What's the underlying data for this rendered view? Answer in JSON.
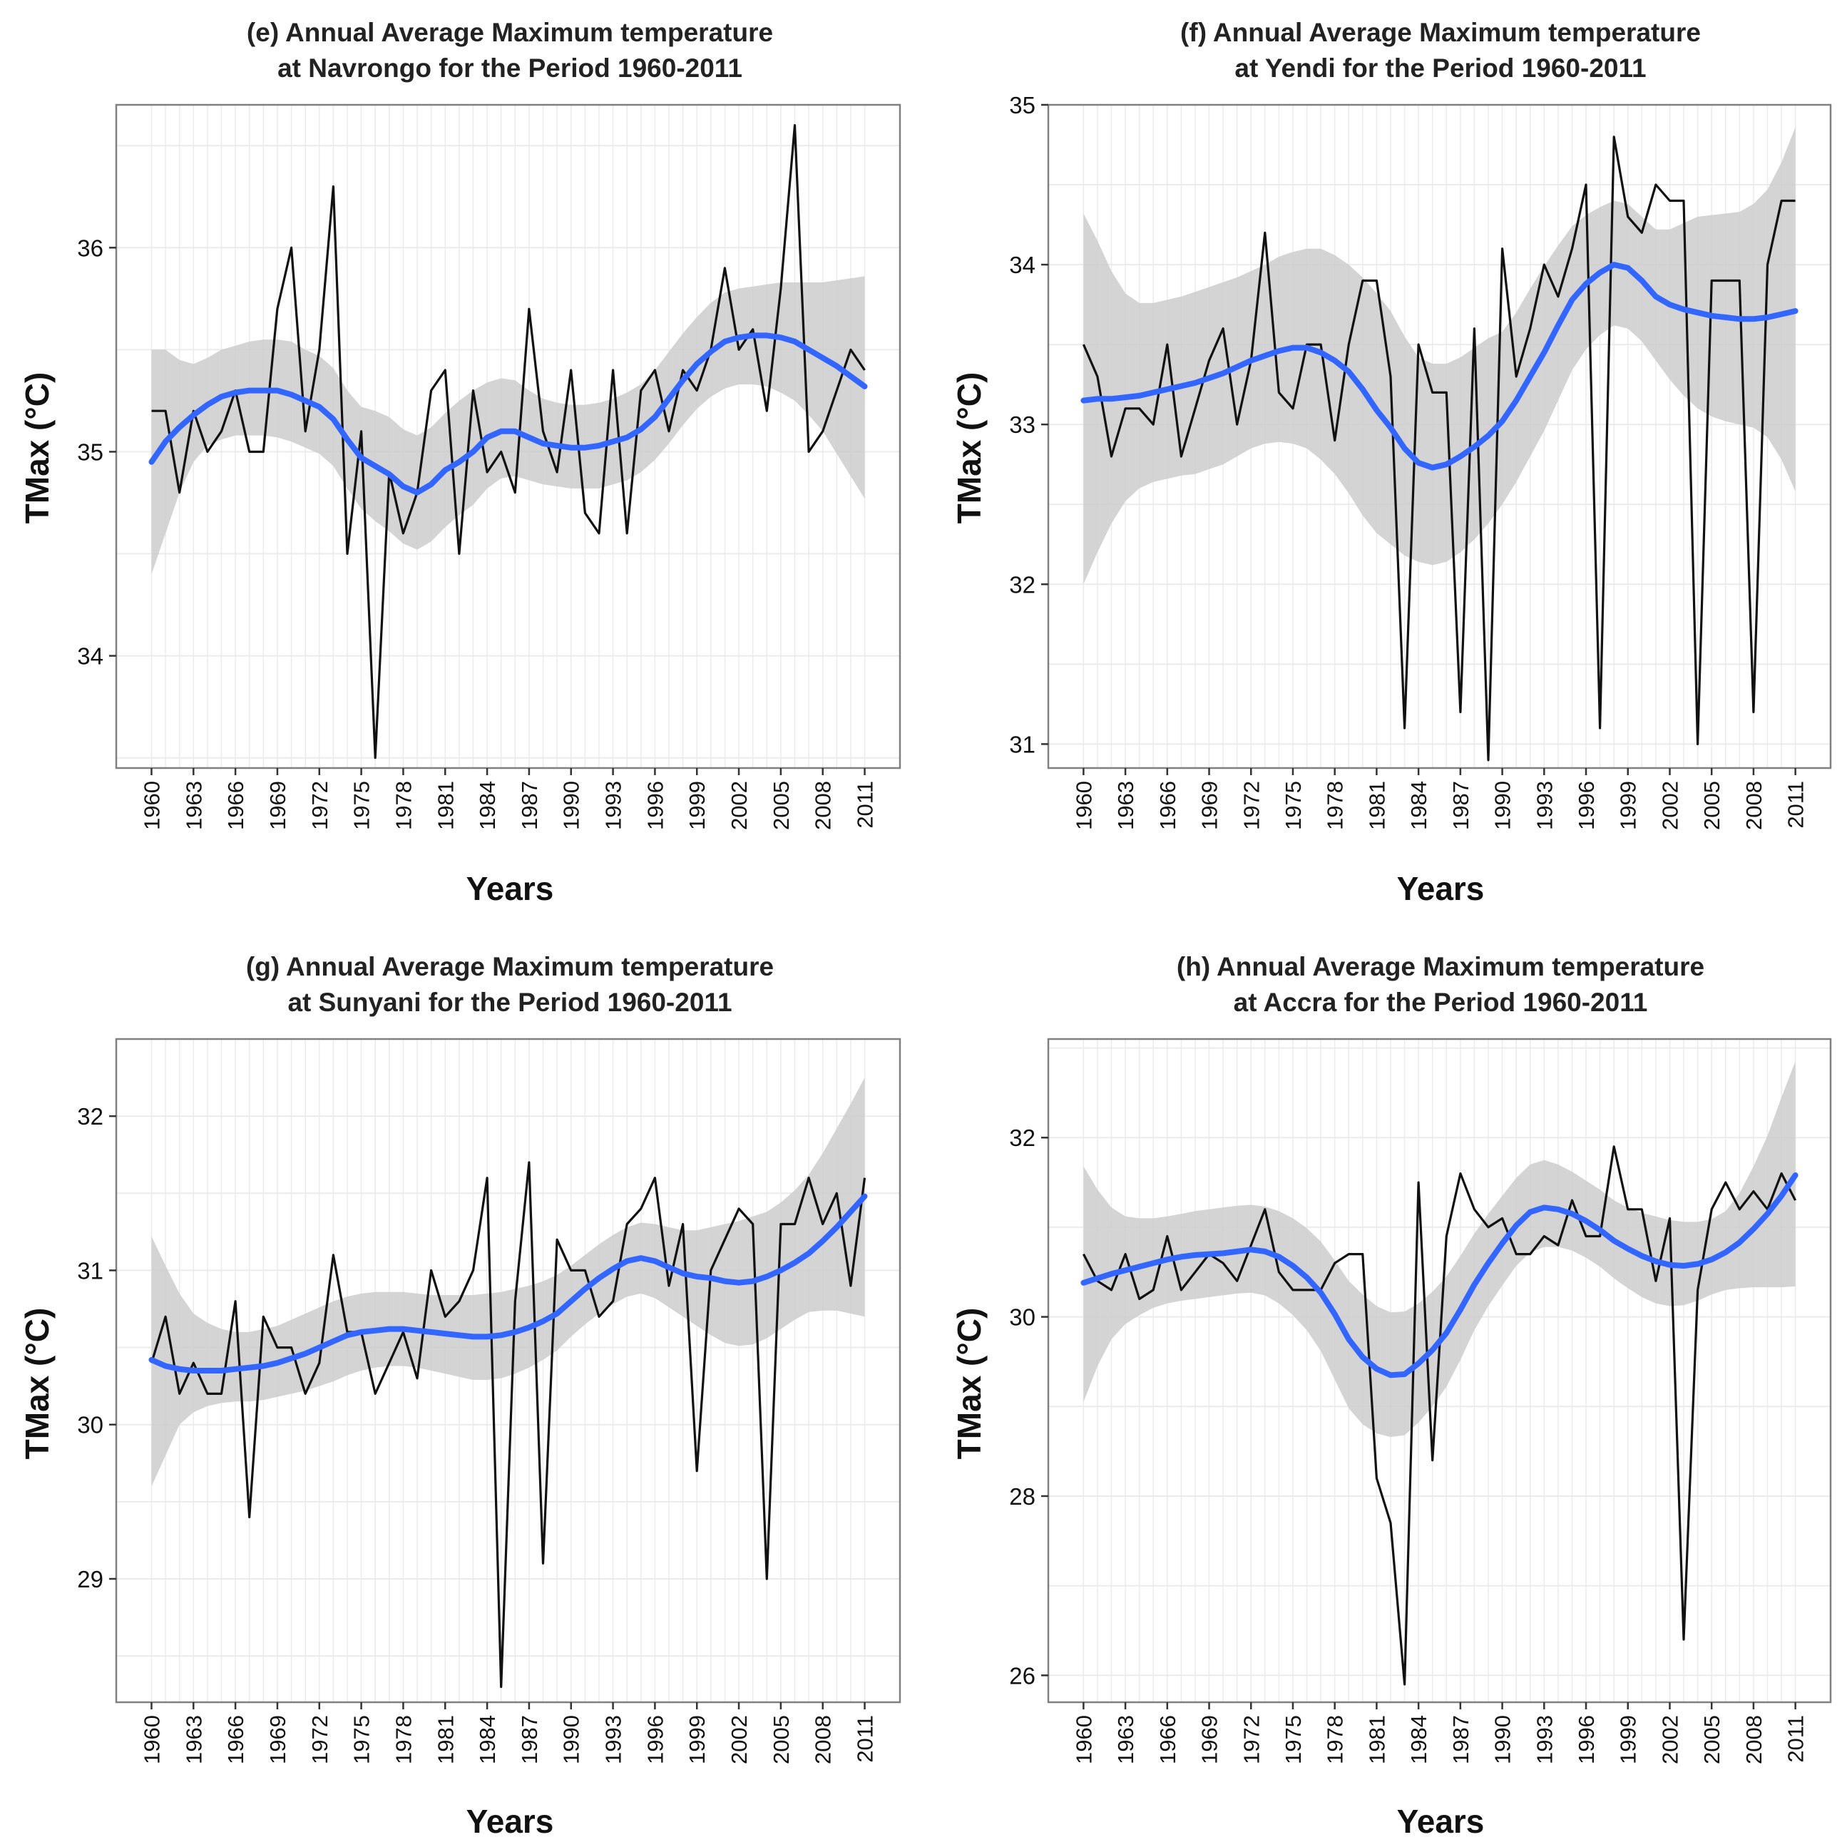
{
  "colors": {
    "data_line": "#111111",
    "smooth_line": "#3366FF",
    "ribbon": "#CCCCCC",
    "grid": "#EBEBEB",
    "panel_border": "#808080"
  },
  "x_tick_labels": [
    "1960",
    "1963",
    "1966",
    "1969",
    "1972",
    "1975",
    "1978",
    "1981",
    "1984",
    "1987",
    "1990",
    "1993",
    "1996",
    "1999",
    "2002",
    "2005",
    "2008",
    "2011"
  ],
  "chart_data": [
    {
      "type": "line",
      "panel": "e",
      "title_line1": "(e) Annual Average Maximum temperature",
      "title_line2": "at Navrongo for the Period 1960-2011",
      "xlabel": "Years",
      "ylabel": "TMax (°C)",
      "ylim": [
        33.45,
        36.7
      ],
      "yticks": [
        34,
        35,
        36
      ],
      "x_start": 1960,
      "values": [
        35.2,
        35.2,
        34.8,
        35.2,
        35.0,
        35.1,
        35.3,
        35.0,
        35.0,
        35.7,
        36.0,
        35.1,
        35.5,
        36.3,
        34.5,
        35.1,
        33.5,
        34.9,
        34.6,
        34.8,
        35.3,
        35.4,
        34.5,
        35.3,
        34.9,
        35.0,
        34.8,
        35.7,
        35.1,
        34.9,
        35.4,
        34.7,
        34.6,
        35.4,
        34.6,
        35.3,
        35.4,
        35.1,
        35.4,
        35.3,
        35.5,
        35.9,
        35.5,
        35.6,
        35.2,
        35.8,
        36.6,
        35.0,
        35.1,
        35.3,
        35.5,
        35.4
      ],
      "smooth": [
        34.95,
        35.05,
        35.12,
        35.18,
        35.23,
        35.27,
        35.29,
        35.3,
        35.3,
        35.3,
        35.28,
        35.25,
        35.22,
        35.16,
        35.06,
        34.97,
        34.93,
        34.89,
        34.83,
        34.8,
        34.84,
        34.91,
        34.95,
        35.0,
        35.07,
        35.1,
        35.1,
        35.07,
        35.04,
        35.03,
        35.02,
        35.02,
        35.03,
        35.05,
        35.07,
        35.11,
        35.17,
        35.26,
        35.35,
        35.43,
        35.49,
        35.54,
        35.56,
        35.57,
        35.57,
        35.56,
        35.54,
        35.5,
        35.46,
        35.42,
        35.37,
        35.32
      ],
      "band_low": [
        34.4,
        34.6,
        34.8,
        34.95,
        35.03,
        35.06,
        35.08,
        35.08,
        35.08,
        35.07,
        35.05,
        35.02,
        34.99,
        34.93,
        34.82,
        34.72,
        34.66,
        34.61,
        34.55,
        34.52,
        34.56,
        34.63,
        34.69,
        34.74,
        34.82,
        34.87,
        34.88,
        34.86,
        34.84,
        34.83,
        34.82,
        34.82,
        34.82,
        34.84,
        34.86,
        34.9,
        34.96,
        35.04,
        35.13,
        35.21,
        35.27,
        35.31,
        35.33,
        35.33,
        35.32,
        35.29,
        35.25,
        35.18,
        35.1,
        34.99,
        34.88,
        34.77
      ],
      "band_high": [
        35.5,
        35.5,
        35.45,
        35.43,
        35.46,
        35.5,
        35.52,
        35.54,
        35.55,
        35.55,
        35.54,
        35.5,
        35.47,
        35.41,
        35.3,
        35.22,
        35.2,
        35.17,
        35.11,
        35.08,
        35.12,
        35.19,
        35.25,
        35.3,
        35.34,
        35.36,
        35.35,
        35.3,
        35.26,
        35.24,
        35.23,
        35.23,
        35.24,
        35.26,
        35.29,
        35.33,
        35.4,
        35.49,
        35.58,
        35.66,
        35.73,
        35.78,
        35.8,
        35.81,
        35.82,
        35.83,
        35.83,
        35.83,
        35.83,
        35.84,
        35.85,
        35.86
      ]
    },
    {
      "type": "line",
      "panel": "f",
      "title_line1": "(f) Annual Average Maximum temperature",
      "title_line2": "at Yendi for the Period 1960-2011",
      "xlabel": "Years",
      "ylabel": "TMax (°C)",
      "ylim": [
        30.85,
        35.0
      ],
      "yticks": [
        31,
        32,
        33,
        34,
        35
      ],
      "x_start": 1960,
      "values": [
        33.5,
        33.3,
        32.8,
        33.1,
        33.1,
        33.0,
        33.5,
        32.8,
        33.1,
        33.4,
        33.6,
        33.0,
        33.4,
        34.2,
        33.2,
        33.1,
        33.5,
        33.5,
        32.9,
        33.5,
        33.9,
        33.9,
        33.3,
        31.1,
        33.5,
        33.2,
        33.2,
        31.2,
        33.6,
        30.9,
        34.1,
        33.3,
        33.6,
        34.0,
        33.8,
        34.1,
        34.5,
        31.1,
        34.8,
        34.3,
        34.2,
        34.5,
        34.4,
        34.4,
        31.0,
        33.9,
        33.9,
        33.9,
        31.2,
        34.0,
        34.4,
        34.4
      ],
      "smooth": [
        33.15,
        33.16,
        33.16,
        33.17,
        33.18,
        33.2,
        33.22,
        33.24,
        33.26,
        33.29,
        33.32,
        33.36,
        33.4,
        33.43,
        33.46,
        33.48,
        33.48,
        33.45,
        33.4,
        33.33,
        33.22,
        33.09,
        32.98,
        32.85,
        32.76,
        32.73,
        32.75,
        32.8,
        32.86,
        32.93,
        33.02,
        33.15,
        33.3,
        33.45,
        33.62,
        33.78,
        33.88,
        33.95,
        34.0,
        33.98,
        33.9,
        33.8,
        33.75,
        33.72,
        33.7,
        33.68,
        33.67,
        33.66,
        33.66,
        33.67,
        33.69,
        33.71
      ],
      "band_low": [
        32.0,
        32.2,
        32.38,
        32.52,
        32.6,
        32.64,
        32.66,
        32.68,
        32.69,
        32.72,
        32.75,
        32.8,
        32.85,
        32.88,
        32.89,
        32.88,
        32.85,
        32.78,
        32.69,
        32.57,
        32.43,
        32.32,
        32.25,
        32.18,
        32.14,
        32.12,
        32.14,
        32.2,
        32.28,
        32.38,
        32.5,
        32.64,
        32.8,
        32.96,
        33.15,
        33.34,
        33.47,
        33.56,
        33.62,
        33.6,
        33.52,
        33.4,
        33.28,
        33.18,
        33.1,
        33.05,
        33.02,
        33.0,
        32.98,
        32.92,
        32.78,
        32.58
      ],
      "band_high": [
        34.32,
        34.15,
        33.96,
        33.82,
        33.76,
        33.76,
        33.78,
        33.8,
        33.83,
        33.86,
        33.89,
        33.92,
        33.96,
        34.0,
        34.05,
        34.08,
        34.1,
        34.1,
        34.06,
        34.0,
        33.92,
        33.82,
        33.71,
        33.55,
        33.42,
        33.38,
        33.38,
        33.42,
        33.48,
        33.54,
        33.58,
        33.7,
        33.85,
        33.99,
        34.12,
        34.24,
        34.31,
        34.36,
        34.4,
        34.38,
        34.3,
        34.22,
        34.22,
        34.26,
        34.3,
        34.31,
        34.32,
        34.33,
        34.38,
        34.47,
        34.64,
        34.86
      ]
    },
    {
      "type": "line",
      "panel": "g",
      "title_line1": "(g) Annual Average Maximum temperature",
      "title_line2": "at Sunyani for the Period 1960-2011",
      "xlabel": "Years",
      "ylabel": "TMax (°C)",
      "ylim": [
        28.2,
        32.5
      ],
      "yticks": [
        29,
        30,
        31,
        32
      ],
      "x_start": 1960,
      "values": [
        30.4,
        30.7,
        30.2,
        30.4,
        30.2,
        30.2,
        30.8,
        29.4,
        30.7,
        30.5,
        30.5,
        30.2,
        30.4,
        31.1,
        30.6,
        30.6,
        30.2,
        30.4,
        30.6,
        30.3,
        31.0,
        30.7,
        30.8,
        31.0,
        31.6,
        28.3,
        30.8,
        31.7,
        29.1,
        31.2,
        31.0,
        31.0,
        30.7,
        30.8,
        31.3,
        31.4,
        31.6,
        30.9,
        31.3,
        29.7,
        31.0,
        31.2,
        31.4,
        31.3,
        29.0,
        31.3,
        31.3,
        31.6,
        31.3,
        31.5,
        30.9,
        31.6
      ],
      "smooth": [
        30.42,
        30.38,
        30.36,
        30.35,
        30.35,
        30.35,
        30.36,
        30.37,
        30.38,
        30.4,
        30.43,
        30.46,
        30.5,
        30.54,
        30.58,
        30.6,
        30.61,
        30.62,
        30.62,
        30.61,
        30.6,
        30.59,
        30.58,
        30.57,
        30.57,
        30.58,
        30.6,
        30.63,
        30.67,
        30.72,
        30.8,
        30.88,
        30.95,
        31.01,
        31.06,
        31.08,
        31.06,
        31.02,
        30.98,
        30.96,
        30.95,
        30.93,
        30.92,
        30.93,
        30.96,
        31.0,
        31.05,
        31.11,
        31.19,
        31.28,
        31.38,
        31.48
      ],
      "band_low": [
        29.6,
        29.8,
        30.0,
        30.08,
        30.12,
        30.14,
        30.15,
        30.15,
        30.16,
        30.18,
        30.2,
        30.22,
        30.25,
        30.28,
        30.32,
        30.35,
        30.37,
        30.38,
        30.38,
        30.37,
        30.35,
        30.33,
        30.31,
        30.29,
        30.29,
        30.3,
        30.33,
        30.37,
        30.42,
        30.48,
        30.57,
        30.65,
        30.72,
        30.78,
        30.83,
        30.85,
        30.82,
        30.76,
        30.7,
        30.64,
        30.58,
        30.53,
        30.51,
        30.52,
        30.56,
        30.62,
        30.68,
        30.73,
        30.74,
        30.74,
        30.72,
        30.7
      ],
      "band_high": [
        31.22,
        31.03,
        30.85,
        30.72,
        30.66,
        30.62,
        30.6,
        30.6,
        30.62,
        30.64,
        30.68,
        30.72,
        30.76,
        30.8,
        30.83,
        30.85,
        30.86,
        30.86,
        30.86,
        30.85,
        30.84,
        30.84,
        30.84,
        30.84,
        30.85,
        30.86,
        30.88,
        30.9,
        30.93,
        30.97,
        31.03,
        31.1,
        31.17,
        31.23,
        31.28,
        31.31,
        31.3,
        31.28,
        31.26,
        31.26,
        31.28,
        31.3,
        31.32,
        31.35,
        31.38,
        31.44,
        31.52,
        31.62,
        31.76,
        31.92,
        32.08,
        32.25
      ]
    },
    {
      "type": "line",
      "panel": "h",
      "title_line1": "(h) Annual Average Maximum temperature",
      "title_line2": "at Accra for the Period 1960-2011",
      "xlabel": "Years",
      "ylabel": "TMax (°C)",
      "ylim": [
        25.7,
        33.1
      ],
      "yticks": [
        26,
        28,
        30,
        32
      ],
      "x_start": 1960,
      "values": [
        30.7,
        30.4,
        30.3,
        30.7,
        30.2,
        30.3,
        30.9,
        30.3,
        30.5,
        30.7,
        30.6,
        30.4,
        30.8,
        31.2,
        30.5,
        30.3,
        30.3,
        30.3,
        30.6,
        30.7,
        30.7,
        28.2,
        27.7,
        25.9,
        31.5,
        28.4,
        30.9,
        31.6,
        31.2,
        31.0,
        31.1,
        30.7,
        30.7,
        30.9,
        30.8,
        31.3,
        30.9,
        30.9,
        31.9,
        31.2,
        31.2,
        30.4,
        31.1,
        26.4,
        30.3,
        31.2,
        31.5,
        31.2,
        31.4,
        31.2,
        31.6,
        31.3
      ],
      "smooth": [
        30.38,
        30.43,
        30.48,
        30.52,
        30.56,
        30.6,
        30.64,
        30.67,
        30.69,
        30.7,
        30.71,
        30.73,
        30.75,
        30.73,
        30.67,
        30.57,
        30.44,
        30.27,
        30.03,
        29.75,
        29.55,
        29.42,
        29.35,
        29.36,
        29.48,
        29.63,
        29.82,
        30.08,
        30.36,
        30.6,
        30.82,
        31.02,
        31.17,
        31.22,
        31.2,
        31.15,
        31.07,
        30.97,
        30.85,
        30.76,
        30.68,
        30.62,
        30.58,
        30.57,
        30.59,
        30.64,
        30.72,
        30.83,
        30.98,
        31.15,
        31.35,
        31.58
      ],
      "band_low": [
        29.05,
        29.45,
        29.75,
        29.92,
        30.02,
        30.1,
        30.15,
        30.18,
        30.2,
        30.22,
        30.24,
        30.26,
        30.27,
        30.24,
        30.15,
        30.02,
        29.85,
        29.62,
        29.3,
        28.98,
        28.8,
        28.7,
        28.66,
        28.68,
        28.82,
        29.0,
        29.22,
        29.52,
        29.85,
        30.12,
        30.35,
        30.57,
        30.72,
        30.78,
        30.78,
        30.74,
        30.66,
        30.56,
        30.43,
        30.32,
        30.22,
        30.15,
        30.12,
        30.13,
        30.18,
        30.25,
        30.3,
        30.32,
        30.33,
        30.33,
        30.33,
        30.34
      ],
      "band_high": [
        31.68,
        31.42,
        31.22,
        31.12,
        31.1,
        31.1,
        31.12,
        31.15,
        31.18,
        31.2,
        31.22,
        31.24,
        31.25,
        31.23,
        31.18,
        31.1,
        30.99,
        30.84,
        30.63,
        30.4,
        30.25,
        30.12,
        30.05,
        30.06,
        30.15,
        30.28,
        30.45,
        30.68,
        30.93,
        31.15,
        31.35,
        31.55,
        31.7,
        31.75,
        31.7,
        31.62,
        31.52,
        31.42,
        31.3,
        31.22,
        31.16,
        31.12,
        31.08,
        31.06,
        31.06,
        31.09,
        31.18,
        31.38,
        31.68,
        32.02,
        32.45,
        32.85
      ]
    }
  ]
}
